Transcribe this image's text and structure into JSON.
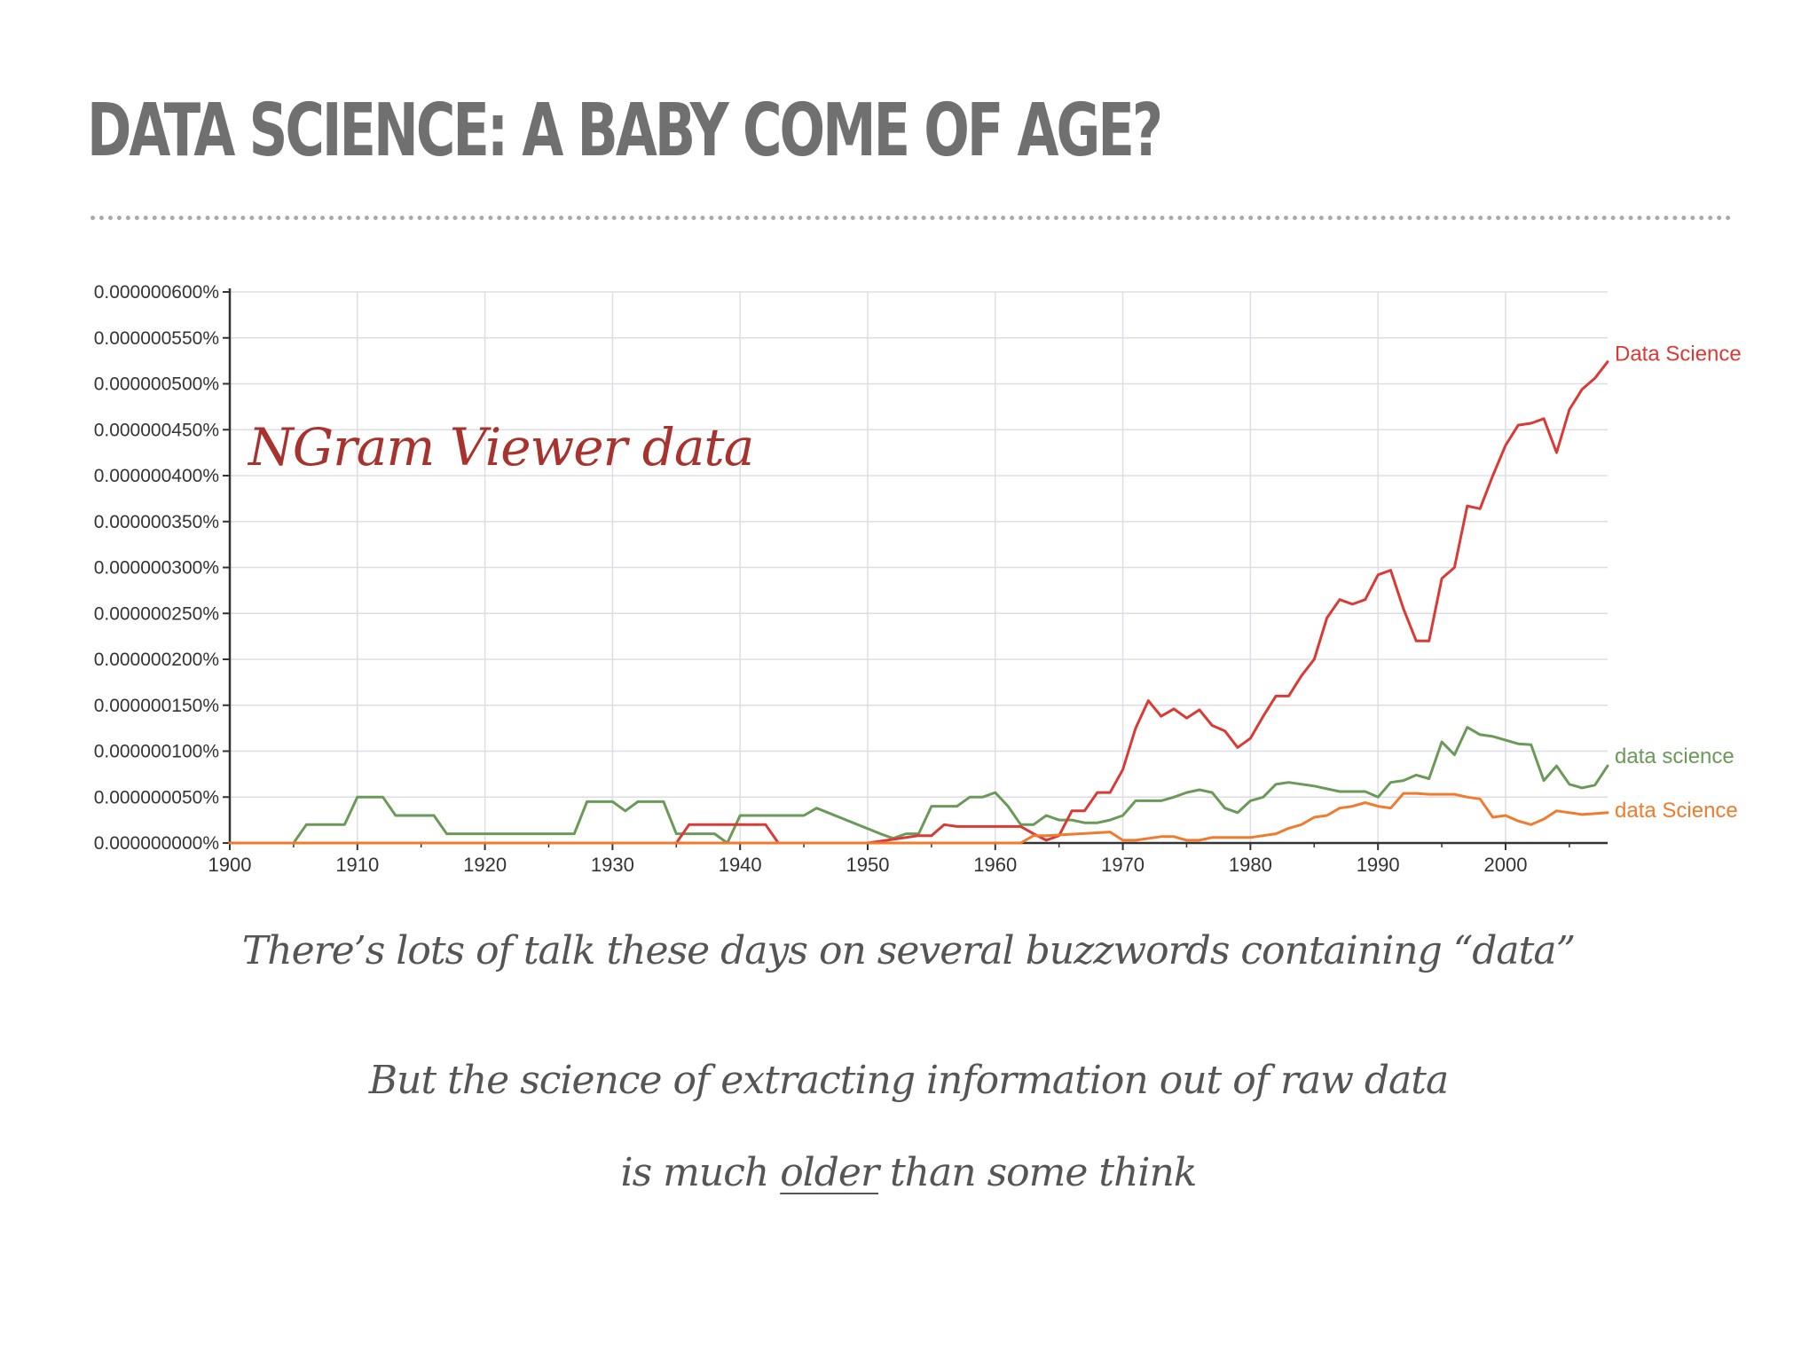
{
  "slide": {
    "title": "DATA SCIENCE: A BABY COME OF AGE?",
    "overlay_label": "NGram Viewer data",
    "caption_1": "There’s lots of talk these days on several buzzwords containing “data”",
    "caption_2": "But the science of extracting information out of raw data",
    "caption_3_before": "is much ",
    "caption_3_emph": "older",
    "caption_3_after": " than some think"
  },
  "colors": {
    "title": "#707070",
    "overlay": "#a8322d",
    "grid": "#dddde6",
    "axis": "#333333"
  },
  "chart_data": {
    "type": "line",
    "xlim": [
      1900,
      2008
    ],
    "ylim": [
      0,
      6e-07
    ],
    "grid": true,
    "legend": "labels at line ends (right)",
    "xticks": [
      1900,
      1910,
      1920,
      1930,
      1940,
      1950,
      1960,
      1970,
      1980,
      1990,
      2000
    ],
    "xtick_labels": [
      "1900",
      "1910",
      "1920",
      "1930",
      "1940",
      "1950",
      "1960",
      "1970",
      "1980",
      "1990",
      "2000"
    ],
    "yticks": [
      0,
      5e-08,
      1e-07,
      1.5e-07,
      2e-07,
      2.5e-07,
      3e-07,
      3.5e-07,
      4e-07,
      4.5e-07,
      5e-07,
      5.5e-07,
      6e-07
    ],
    "ytick_labels": [
      "0.000000000%",
      "0.000000050%",
      "0.000000100%",
      "0.000000150%",
      "0.000000200%",
      "0.000000250%",
      "0.000000300%",
      "0.000000350%",
      "0.000000400%",
      "0.000000450%",
      "0.000000500%",
      "0.000000550%",
      "0.000000600%"
    ],
    "series": [
      {
        "name": "data science",
        "color": "#6a9a57",
        "x": [
          1900,
          1905,
          1906,
          1909,
          1910,
          1912,
          1913,
          1916,
          1917,
          1924,
          1927,
          1928,
          1930,
          1931,
          1932,
          1934,
          1935,
          1938,
          1939,
          1940,
          1944,
          1945,
          1946,
          1951,
          1952,
          1953,
          1954,
          1955,
          1957,
          1958,
          1959,
          1960,
          1961,
          1962,
          1963,
          1964,
          1965,
          1966,
          1967,
          1968,
          1969,
          1970,
          1971,
          1973,
          1974,
          1975,
          1976,
          1977,
          1978,
          1979,
          1980,
          1981,
          1982,
          1983,
          1985,
          1987,
          1988,
          1989,
          1990,
          1991,
          1992,
          1993,
          1994,
          1995,
          1996,
          1997,
          1998,
          1999,
          2000,
          2001,
          2002,
          2003,
          2004,
          2005,
          2006,
          2007,
          2008
        ],
        "values": [
          0,
          0,
          2e-08,
          2e-08,
          5e-08,
          5e-08,
          3e-08,
          3e-08,
          1e-08,
          1e-08,
          1e-08,
          4.5e-08,
          4.5e-08,
          3.5e-08,
          4.5e-08,
          4.5e-08,
          1e-08,
          1e-08,
          0,
          3e-08,
          3e-08,
          3e-08,
          3.8e-08,
          1e-08,
          5e-09,
          1e-08,
          1e-08,
          4e-08,
          4e-08,
          5e-08,
          5e-08,
          5.5e-08,
          4e-08,
          2e-08,
          2e-08,
          3e-08,
          2.5e-08,
          2.5e-08,
          2.2e-08,
          2.2e-08,
          2.5e-08,
          3e-08,
          4.6e-08,
          4.6e-08,
          5e-08,
          5.5e-08,
          5.8e-08,
          5.5e-08,
          3.8e-08,
          3.3e-08,
          4.6e-08,
          5e-08,
          6.4e-08,
          6.6e-08,
          6.2e-08,
          5.6e-08,
          5.6e-08,
          5.6e-08,
          5e-08,
          6.6e-08,
          6.8e-08,
          7.4e-08,
          7e-08,
          1.1e-07,
          9.6e-08,
          1.26e-07,
          1.18e-07,
          1.16e-07,
          1.12e-07,
          1.08e-07,
          1.07e-07,
          6.8e-08,
          8.4e-08,
          6.4e-08,
          6e-08,
          6.3e-08,
          8.4e-08
        ]
      },
      {
        "name": "Data Science",
        "color": "#d93a35",
        "x": [
          1900,
          1935,
          1936,
          1942,
          1943,
          1950,
          1954,
          1955,
          1956,
          1957,
          1962,
          1963,
          1964,
          1965,
          1966,
          1967,
          1968,
          1969,
          1970,
          1971,
          1972,
          1973,
          1974,
          1975,
          1976,
          1977,
          1978,
          1979,
          1980,
          1981,
          1982,
          1983,
          1984,
          1985,
          1986,
          1987,
          1988,
          1989,
          1990,
          1991,
          1992,
          1993,
          1994,
          1995,
          1996,
          1997,
          1998,
          1999,
          2000,
          2001,
          2002,
          2003,
          2004,
          2005,
          2006,
          2007,
          2008
        ],
        "values": [
          0,
          0,
          2e-08,
          2e-08,
          0,
          0,
          8e-09,
          8e-09,
          2e-08,
          1.8e-08,
          1.8e-08,
          1e-08,
          3e-09,
          8e-09,
          3.5e-08,
          3.5e-08,
          5.5e-08,
          5.5e-08,
          8e-08,
          1.25e-07,
          1.55e-07,
          1.38e-07,
          1.46e-07,
          1.36e-07,
          1.45e-07,
          1.28e-07,
          1.22e-07,
          1.04e-07,
          1.14e-07,
          1.38e-07,
          1.6e-07,
          1.6e-07,
          1.82e-07,
          2e-07,
          2.45e-07,
          2.65e-07,
          2.6e-07,
          2.65e-07,
          2.92e-07,
          2.97e-07,
          2.55e-07,
          2.2e-07,
          2.2e-07,
          2.88e-07,
          3e-07,
          3.67e-07,
          3.64e-07,
          4e-07,
          4.33e-07,
          4.55e-07,
          4.57e-07,
          4.62e-07,
          4.25e-07,
          4.72e-07,
          4.94e-07,
          5.06e-07,
          5.24e-07
        ]
      },
      {
        "name": "data Science",
        "color": "#f07b2d",
        "x": [
          1900,
          1962,
          1963,
          1964,
          1969,
          1970,
          1971,
          1973,
          1974,
          1975,
          1976,
          1977,
          1980,
          1981,
          1982,
          1983,
          1984,
          1985,
          1986,
          1987,
          1988,
          1989,
          1990,
          1991,
          1992,
          1993,
          1994,
          1995,
          1996,
          1997,
          1998,
          1999,
          2000,
          2001,
          2002,
          2003,
          2004,
          2005,
          2006,
          2007,
          2008
        ],
        "values": [
          0,
          0,
          8e-09,
          8e-09,
          1.2e-08,
          3e-09,
          3e-09,
          7e-09,
          7e-09,
          3e-09,
          3e-09,
          6e-09,
          6e-09,
          8e-09,
          1e-08,
          1.6e-08,
          2e-08,
          2.8e-08,
          3e-08,
          3.8e-08,
          4e-08,
          4.4e-08,
          4e-08,
          3.8e-08,
          5.4e-08,
          5.4e-08,
          5.3e-08,
          5.3e-08,
          5.3e-08,
          5e-08,
          4.8e-08,
          2.8e-08,
          3e-08,
          2.4e-08,
          2e-08,
          2.6e-08,
          3.5e-08,
          3.3e-08,
          3.1e-08,
          3.2e-08,
          3.3e-08
        ]
      }
    ]
  }
}
